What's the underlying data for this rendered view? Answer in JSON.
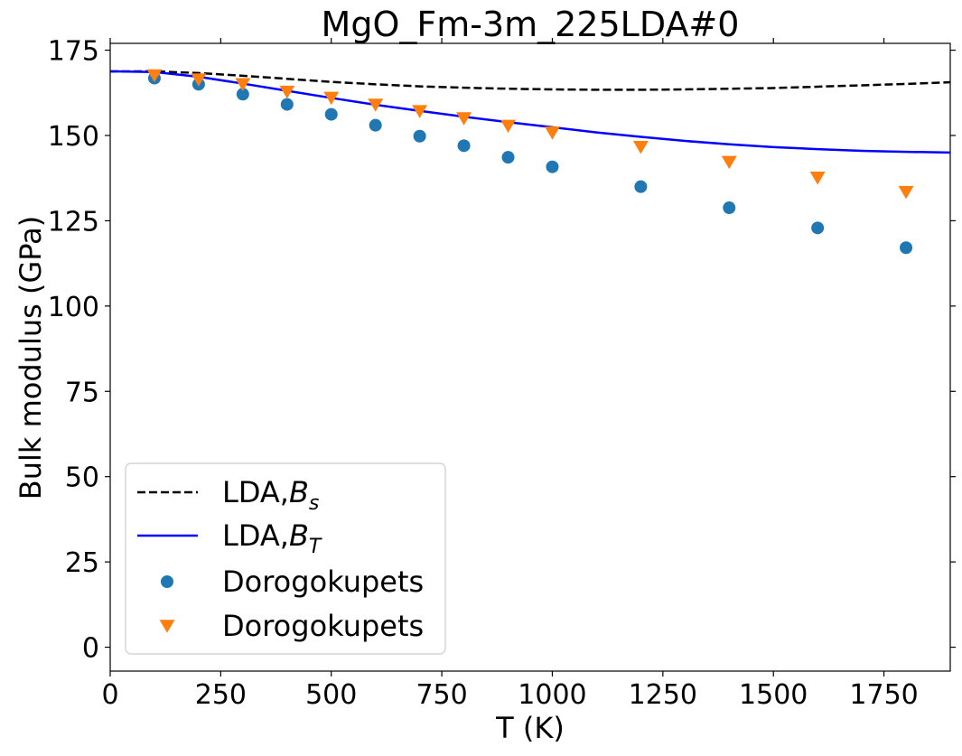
{
  "chart_data": {
    "type": "line",
    "title": "MgO_Fm-3m_225LDA#0",
    "xlabel": "T (K)",
    "ylabel": "Bulk modulus (GPa)",
    "xlim": [
      0,
      1900
    ],
    "ylim": [
      -7,
      177
    ],
    "xticks": [
      0,
      250,
      500,
      750,
      1000,
      1250,
      1500,
      1750
    ],
    "yticks": [
      0,
      25,
      50,
      75,
      100,
      125,
      150,
      175
    ],
    "grid": false,
    "legend_position": "lower-left",
    "series": [
      {
        "name": "LDA,B_s",
        "legend_text": "LDA,",
        "legend_symbol": "B",
        "legend_subscript": "s",
        "kind": "line",
        "style": "dashed",
        "color": "#000000",
        "x": [
          0,
          100,
          200,
          300,
          400,
          500,
          600,
          700,
          800,
          900,
          1000,
          1100,
          1200,
          1300,
          1400,
          1500,
          1600,
          1700,
          1800,
          1900
        ],
        "y": [
          168.8,
          168.8,
          168.3,
          167.5,
          166.6,
          165.7,
          165.0,
          164.4,
          164.0,
          163.7,
          163.5,
          163.4,
          163.4,
          163.5,
          163.7,
          163.9,
          164.3,
          164.7,
          165.1,
          165.6
        ]
      },
      {
        "name": "LDA,B_T",
        "legend_text": "LDA,",
        "legend_symbol": "B",
        "legend_subscript": "T",
        "kind": "line",
        "style": "solid",
        "color": "#0000ff",
        "x": [
          0,
          100,
          200,
          300,
          400,
          500,
          600,
          700,
          800,
          900,
          1000,
          1100,
          1200,
          1300,
          1400,
          1500,
          1600,
          1700,
          1800,
          1900
        ],
        "y": [
          168.8,
          168.6,
          167.2,
          165.2,
          163.1,
          161.0,
          159.0,
          157.2,
          155.5,
          153.9,
          152.4,
          150.9,
          149.6,
          148.4,
          147.4,
          146.6,
          146.0,
          145.5,
          145.2,
          145.0
        ]
      },
      {
        "name": "Dorogokupets",
        "kind": "scatter",
        "marker": "circle",
        "color": "#1f77b4",
        "x": [
          100,
          200,
          300,
          400,
          500,
          600,
          700,
          800,
          900,
          1000,
          1200,
          1400,
          1600,
          1800
        ],
        "y": [
          166.8,
          165.0,
          162.1,
          159.1,
          156.2,
          153.0,
          149.8,
          147.0,
          143.6,
          140.8,
          135.0,
          128.8,
          122.9,
          117.1
        ]
      },
      {
        "name": "Dorogokupets",
        "kind": "scatter",
        "marker": "triangle-down",
        "color": "#ff7f0e",
        "x": [
          100,
          200,
          300,
          400,
          500,
          600,
          700,
          800,
          900,
          1000,
          1200,
          1400,
          1600,
          1800
        ],
        "y": [
          167.6,
          166.4,
          165.0,
          162.8,
          161.0,
          159.0,
          157.1,
          155.0,
          152.8,
          150.8,
          146.6,
          142.2,
          137.6,
          133.4
        ]
      }
    ]
  }
}
